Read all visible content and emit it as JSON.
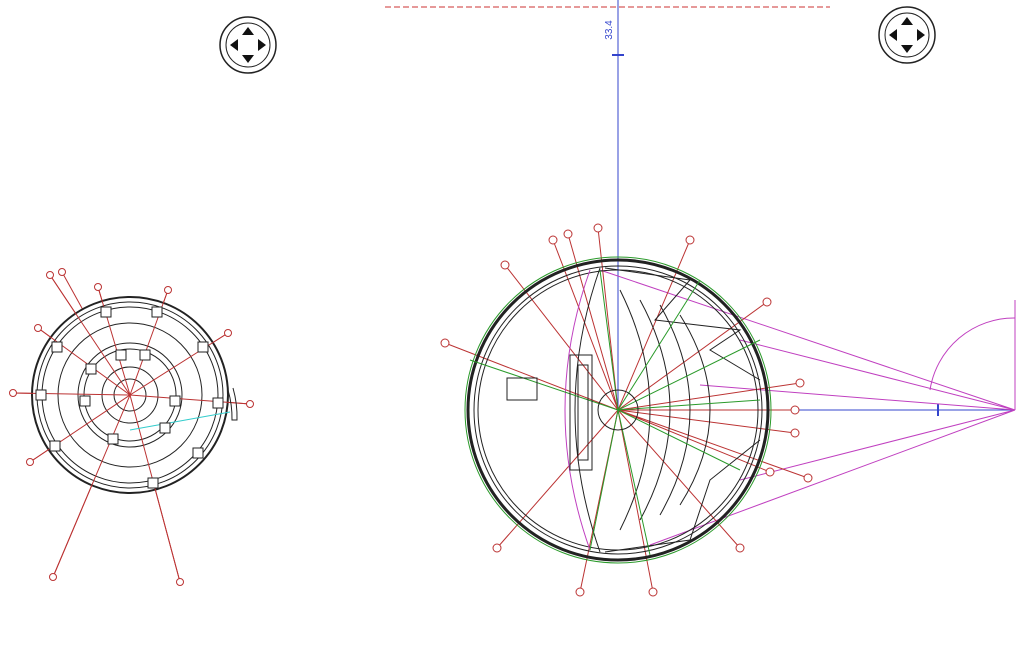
{
  "drawing": {
    "dimension_label": "33.4"
  }
}
